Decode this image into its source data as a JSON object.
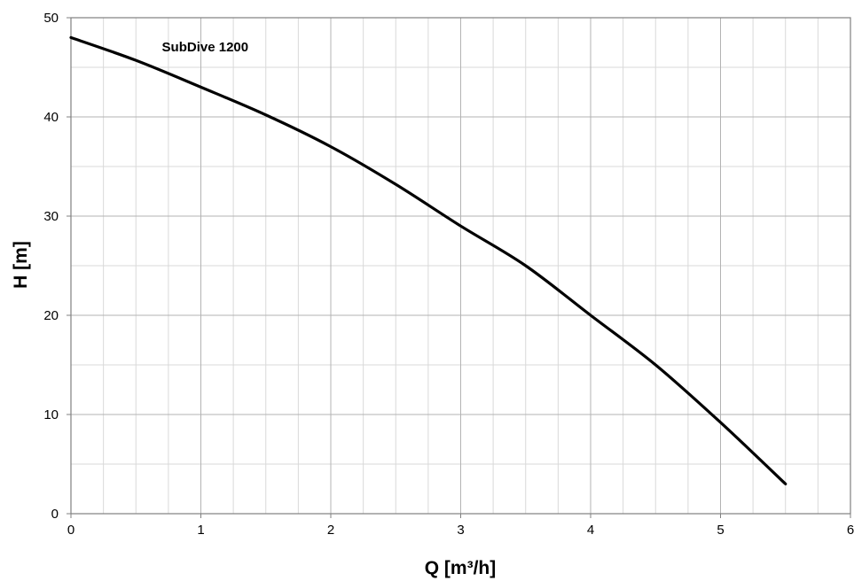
{
  "chart_data": {
    "type": "line",
    "title": "",
    "xlabel": "Q [m³/h]",
    "ylabel": "H [m]",
    "xlim": [
      0,
      6
    ],
    "ylim": [
      0,
      50
    ],
    "x_ticks": [
      0,
      1,
      2,
      3,
      4,
      5,
      6
    ],
    "y_ticks": [
      0,
      10,
      20,
      30,
      40,
      50
    ],
    "x_minor_step": 0.25,
    "y_minor_step": 5,
    "grid": true,
    "legend": "none",
    "annotations": [
      {
        "text": "SubDive 1200",
        "x": 0.7,
        "y": 46.6
      }
    ],
    "series": [
      {
        "color": "#000000",
        "x": [
          0,
          0.5,
          1,
          1.5,
          2,
          2.5,
          3,
          3.5,
          4,
          4.5,
          5,
          5.5
        ],
        "y": [
          48,
          45.7,
          43,
          40.2,
          37,
          33.2,
          29,
          25,
          20,
          15,
          9.2,
          3
        ]
      }
    ]
  }
}
